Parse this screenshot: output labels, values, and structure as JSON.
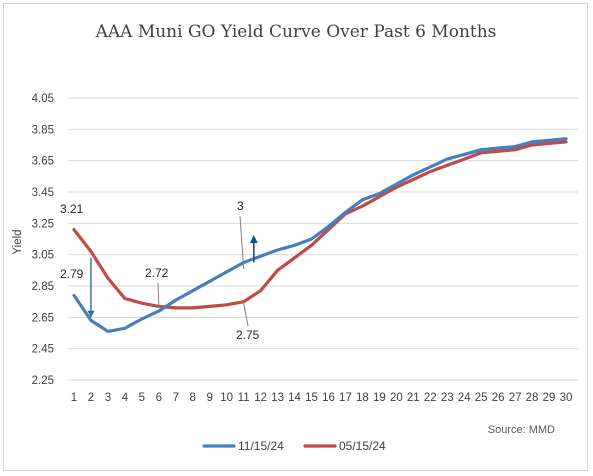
{
  "chart_data": {
    "type": "line",
    "title": "AAA Muni GO Yield Curve Over Past 6 Months",
    "xlabel": "",
    "ylabel": "Yield",
    "ylim": [
      2.25,
      4.05
    ],
    "yticks": [
      "4.05",
      "3.85",
      "3.65",
      "3.45",
      "3.25",
      "3.05",
      "2.85",
      "2.65",
      "2.45",
      "2.25"
    ],
    "x": [
      1,
      2,
      3,
      4,
      5,
      6,
      7,
      8,
      9,
      10,
      11,
      12,
      13,
      14,
      15,
      16,
      17,
      18,
      19,
      20,
      21,
      22,
      23,
      24,
      25,
      26,
      27,
      28,
      29,
      30
    ],
    "grid": "horizontal",
    "legend_position": "bottom",
    "series": [
      {
        "name": "11/15/24",
        "color": "#4a7ebb",
        "values": [
          2.79,
          2.63,
          2.56,
          2.58,
          2.64,
          2.69,
          2.76,
          2.82,
          2.88,
          2.94,
          3.0,
          3.04,
          3.08,
          3.11,
          3.15,
          3.23,
          3.32,
          3.4,
          3.44,
          3.5,
          3.56,
          3.61,
          3.66,
          3.69,
          3.72,
          3.73,
          3.74,
          3.77,
          3.78,
          3.79
        ]
      },
      {
        "name": "05/15/24",
        "color": "#be4b48",
        "values": [
          3.21,
          3.07,
          2.9,
          2.77,
          2.74,
          2.72,
          2.71,
          2.71,
          2.72,
          2.73,
          2.75,
          2.82,
          2.95,
          3.03,
          3.11,
          3.21,
          3.31,
          3.36,
          3.42,
          3.48,
          3.53,
          3.58,
          3.62,
          3.66,
          3.7,
          3.71,
          3.72,
          3.75,
          3.76,
          3.77
        ]
      }
    ],
    "annotations": [
      {
        "text": "3.21"
      },
      {
        "text": "2.79"
      },
      {
        "text": "2.72"
      },
      {
        "text": "3"
      },
      {
        "text": "2.75"
      }
    ],
    "source": "Source: MMD"
  }
}
